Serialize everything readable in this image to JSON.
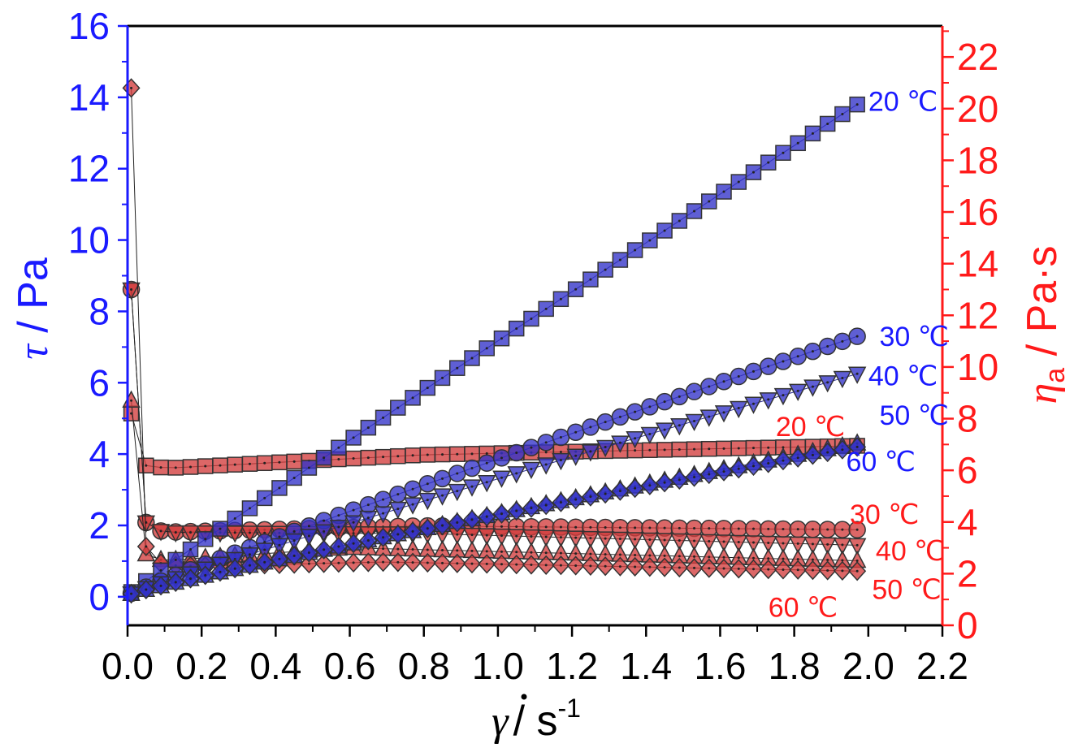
{
  "chart_data": {
    "type": "scatter",
    "title": "",
    "xlabel": {
      "symbol": "γ",
      "unit": "/ s",
      "exp": "-1"
    },
    "ylabel_left": {
      "symbol": "τ",
      "unit": " / Pa"
    },
    "ylabel_right": {
      "symbol": "η",
      "sub": "a",
      "unit": " / Pa·s"
    },
    "xlim": [
      0,
      2.2
    ],
    "ylim_left": [
      -0.8,
      16
    ],
    "ylim_right": [
      0,
      23.2
    ],
    "x_ticks": [
      "0.0",
      "0.2",
      "0.4",
      "0.6",
      "0.8",
      "1.0",
      "1.2",
      "1.4",
      "1.6",
      "1.8",
      "2.0",
      "2.2"
    ],
    "y_left_ticks": [
      "0",
      "2",
      "4",
      "6",
      "8",
      "10",
      "12",
      "14",
      "16"
    ],
    "y_right_ticks": [
      "0",
      "2",
      "4",
      "6",
      "8",
      "10",
      "12",
      "14",
      "16",
      "18",
      "20",
      "22"
    ],
    "colors": {
      "shear_stress": "#3a3ad0",
      "viscosity": "#cc3a3a",
      "left_axis": "#1a1aff",
      "right_axis": "#ff1a1a"
    },
    "x_start": 0.01,
    "x_step": 0.04,
    "n_points": 50,
    "shear_stress_series": [
      {
        "temp": "20 ℃",
        "marker": "square",
        "shape": "power",
        "y0": 0.05,
        "y1": 13.8,
        "n": 0.97
      },
      {
        "temp": "30 ℃",
        "marker": "circle",
        "shape": "power",
        "y0": 0.05,
        "y1": 7.3,
        "n": 0.95
      },
      {
        "temp": "40 ℃",
        "marker": "triangle-down",
        "shape": "power",
        "y0": 0.05,
        "y1": 6.25,
        "n": 0.95
      },
      {
        "temp": "50 ℃",
        "marker": "triangle-up",
        "shape": "power",
        "y0": 0.05,
        "y1": 4.3,
        "n": 0.92
      },
      {
        "temp": "60 ℃",
        "marker": "diamond",
        "shape": "power",
        "y0": 0.05,
        "y1": 4.2,
        "n": 0.9
      }
    ],
    "viscosity_series": [
      {
        "temp": "20 ℃",
        "marker": "square",
        "first": 8.2,
        "dip": 6.1,
        "dipx": 0.13,
        "peak": 6.6,
        "peakx": 0.8,
        "end": 6.95
      },
      {
        "temp": "30 ℃",
        "marker": "circle",
        "first": 13.0,
        "dip": 3.6,
        "dipx": 0.09,
        "peak": 3.85,
        "peakx": 0.8,
        "end": 3.7
      },
      {
        "temp": "40 ℃",
        "marker": "triangle-down",
        "first": 13.0,
        "dip": 3.6,
        "dipx": 0.09,
        "peak": 3.55,
        "peakx": 0.8,
        "end": 3.1
      },
      {
        "temp": "50 ℃",
        "marker": "triangle-up",
        "first": 8.7,
        "dip": 2.5,
        "dipx": 0.09,
        "peak": 3.0,
        "peakx": 0.6,
        "end": 2.5
      },
      {
        "temp": "60 ℃",
        "marker": "diamond",
        "first": 20.8,
        "dip": 2.3,
        "dipx": 0.2,
        "peak": 2.45,
        "peakx": 0.7,
        "end": 2.1
      }
    ],
    "annotations_blue": [
      {
        "text": "20 ℃",
        "x": 2.0,
        "y": 13.9
      },
      {
        "text": "30 ℃",
        "x": 2.03,
        "y": 7.3
      },
      {
        "text": "40 ℃",
        "x": 2.0,
        "y": 6.2
      },
      {
        "text": "50 ℃",
        "x": 2.03,
        "y": 5.1
      },
      {
        "text": "60 ℃",
        "x": 1.94,
        "y": 3.8
      }
    ],
    "annotations_red": [
      {
        "text": "20 ℃",
        "x": 1.75,
        "y": 7.7
      },
      {
        "text": "30 ℃",
        "x": 1.95,
        "y": 4.3
      },
      {
        "text": "40 ℃",
        "x": 2.02,
        "y": 2.9
      },
      {
        "text": "50 ℃",
        "x": 2.01,
        "y": 1.4
      },
      {
        "text": "60 ℃",
        "x": 1.73,
        "y": 0.7
      }
    ]
  }
}
